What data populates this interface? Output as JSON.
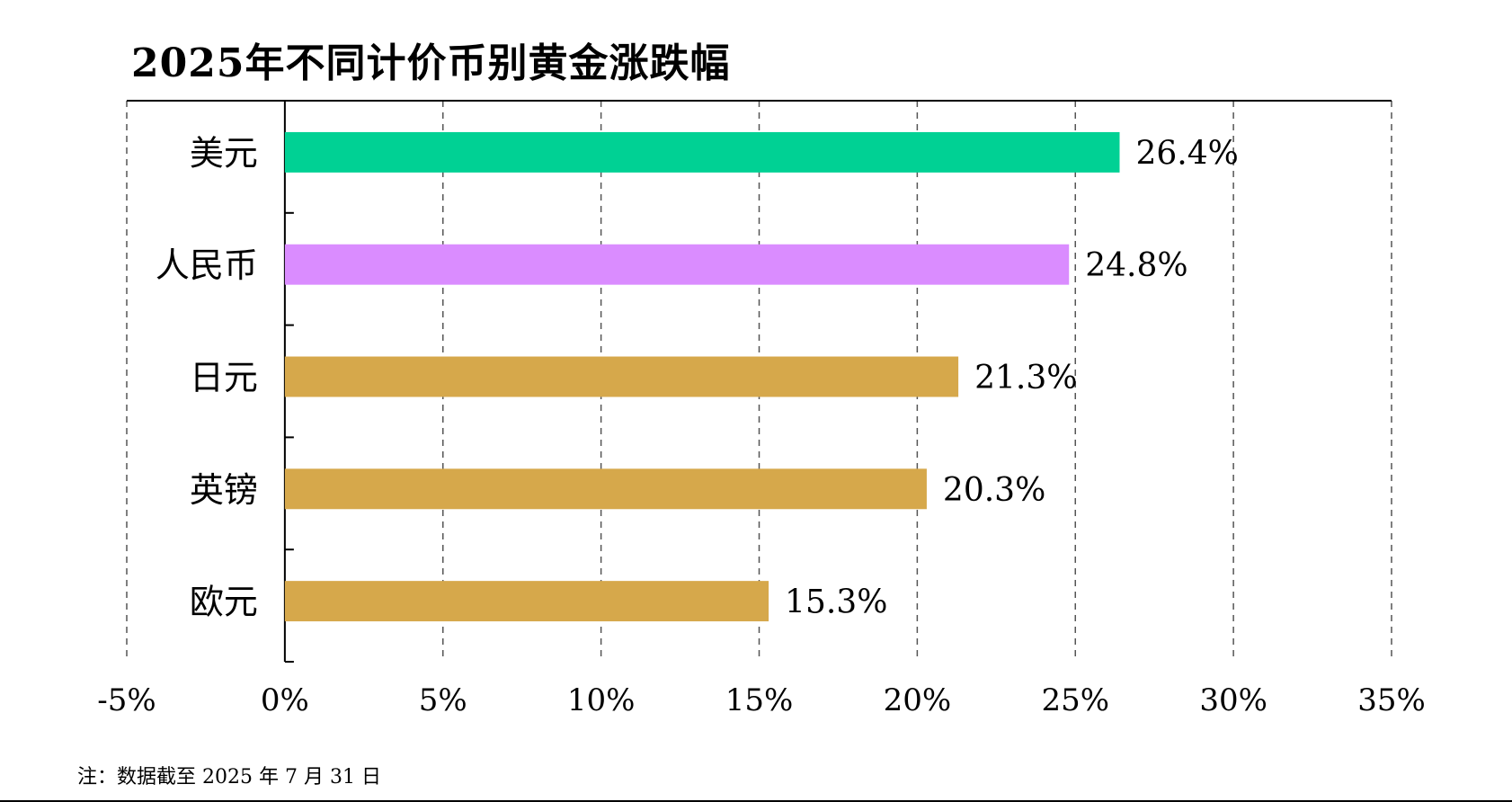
{
  "chart_data": {
    "type": "bar",
    "orientation": "horizontal",
    "title": "2025年不同计价币别黄金涨跌幅",
    "categories": [
      "美元",
      "人民币",
      "日元",
      "英镑",
      "欧元"
    ],
    "values": [
      26.4,
      24.8,
      21.3,
      20.3,
      15.3
    ],
    "data_labels": [
      "26.4%",
      "24.8%",
      "21.3%",
      "20.3%",
      "15.3%"
    ],
    "bar_colors": [
      "#00d194",
      "#da8cff",
      "#d6a84b",
      "#d6a84b",
      "#d6a84b"
    ],
    "xlim": [
      -5,
      35
    ],
    "x_ticks": [
      -5,
      0,
      5,
      10,
      15,
      20,
      25,
      30,
      35
    ],
    "x_tick_labels": [
      "-5%",
      "0%",
      "5%",
      "10%",
      "15%",
      "20%",
      "25%",
      "30%",
      "35%"
    ],
    "grid": "vertical dashed",
    "xlabel": "",
    "ylabel": ""
  },
  "footnote": "注：数据截至 2025 年 7 月 31 日"
}
